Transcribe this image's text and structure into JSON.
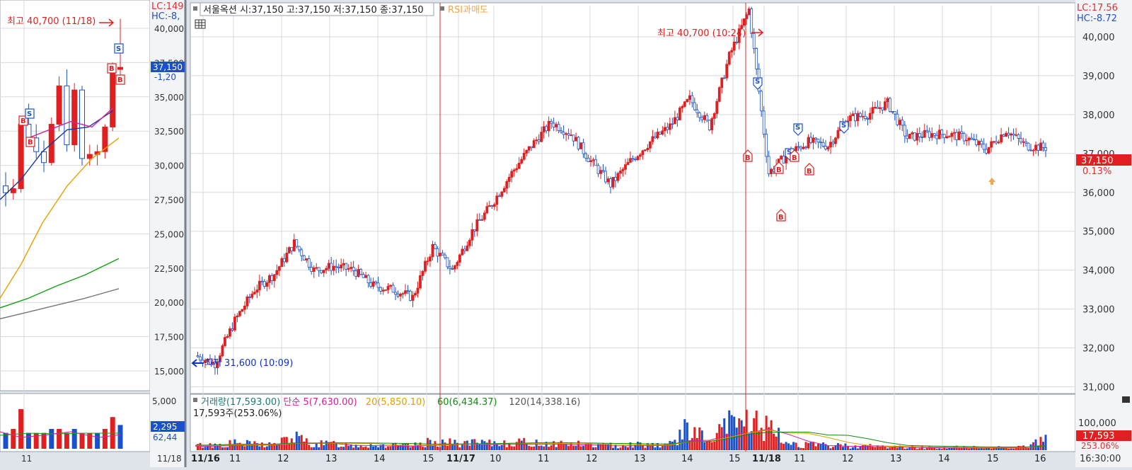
{
  "left_panel": {
    "lc_label": "LC:149",
    "hc_label": "HC:-8,",
    "high_annotation": "최고 40,700 (11/18)",
    "price_ticks": [
      "40,000",
      "37,500",
      "35,000",
      "32,500",
      "30,000",
      "27,500",
      "25,000",
      "22,500",
      "20,000",
      "17,500",
      "15,000"
    ],
    "current_price": "37,150",
    "change": "-1,20",
    "volume_tick": "5,000",
    "volume_current": "2,295",
    "volume_ratio": "62,44",
    "x_tick": "11",
    "bottom_label": "11/18"
  },
  "info_bar": {
    "title": "서울옥션 시:37,150 고:37,150 저:37,150 종:37,150",
    "rsi_label": "RSI과매도"
  },
  "main_panel": {
    "lc_label": "LC:17.56",
    "hc_label": "HC:-8.72",
    "high_annotation": "최고 40,700 (10:24)",
    "low_annotation": "최저 31,600 (10:09)",
    "price_ticks": [
      "40,000",
      "39,000",
      "38,000",
      "37,000",
      "36,000",
      "35,000",
      "34,000",
      "33,000",
      "32,000",
      "31,000"
    ],
    "current_price": "37,150",
    "current_pct": "0.13%",
    "volume": {
      "legend": [
        {
          "text": "거래량(17,593.00)",
          "color": "#1a7a7a"
        },
        {
          "text": "단순 5(7,630.00)",
          "color": "#d020a0"
        },
        {
          "text": "20(5,850.10)",
          "color": "#e0a000"
        },
        {
          "text": "60(6,434.37)",
          "color": "#108a10"
        },
        {
          "text": "120(14,338.16)",
          "color": "#555555"
        }
      ],
      "sub_label": "17,593주(253.06%)",
      "tick": "100,000",
      "current": "17,593",
      "current_pct": "253.06%"
    },
    "x_labels": [
      {
        "text": "11/16",
        "bold": true
      },
      {
        "text": "11",
        "bold": false
      },
      {
        "text": "12",
        "bold": false
      },
      {
        "text": "13",
        "bold": false
      },
      {
        "text": "14",
        "bold": false
      },
      {
        "text": "15",
        "bold": false
      },
      {
        "text": "11/17",
        "bold": true
      },
      {
        "text": "10",
        "bold": false
      },
      {
        "text": "11",
        "bold": false
      },
      {
        "text": "12",
        "bold": false
      },
      {
        "text": "13",
        "bold": false
      },
      {
        "text": "14",
        "bold": false
      },
      {
        "text": "15",
        "bold": false
      },
      {
        "text": "11/18",
        "bold": true
      },
      {
        "text": "11",
        "bold": false
      },
      {
        "text": "12",
        "bold": false
      },
      {
        "text": "13",
        "bold": false
      },
      {
        "text": "14",
        "bold": false
      },
      {
        "text": "15",
        "bold": false
      },
      {
        "text": "16",
        "bold": false
      }
    ],
    "time_label": "16:30:00"
  },
  "chart_data": {
    "type": "line",
    "title": "",
    "x": [
      "11/16 09:00",
      "11/16 10:09",
      "11/16 11:00",
      "11/16 11:30",
      "11/16 12:00",
      "11/16 12:20",
      "11/16 13:00",
      "11/16 13:30",
      "11/16 14:00",
      "11/16 14:30",
      "11/16 15:00",
      "11/16 15:30",
      "11/17 09:00",
      "11/17 09:30",
      "11/17 10:00",
      "11/17 10:30",
      "11/17 11:00",
      "11/17 11:30",
      "11/17 12:00",
      "11/17 12:30",
      "11/17 13:00",
      "11/17 13:20",
      "11/17 14:00",
      "11/17 14:30",
      "11/17 15:00",
      "11/17 15:20",
      "11/18 09:00",
      "11/18 09:30",
      "11/18 10:24",
      "11/18 10:45",
      "11/18 11:00",
      "11/18 11:20",
      "11/18 11:40",
      "11/18 12:00",
      "11/18 12:30",
      "11/18 12:50",
      "11/18 13:00",
      "11/18 13:30",
      "11/18 14:00",
      "11/18 14:30",
      "11/18 15:00",
      "11/18 15:30",
      "11/18 16:00",
      "11/18 16:10"
    ],
    "y": [
      31.8,
      31.6,
      32.7,
      33.5,
      33.9,
      34.7,
      34.0,
      34.1,
      34.0,
      33.6,
      33.5,
      33.3,
      34.6,
      34.0,
      35.0,
      35.7,
      36.5,
      37.2,
      37.8,
      37.5,
      36.8,
      36.2,
      36.8,
      37.3,
      37.7,
      38.4,
      37.7,
      39.5,
      40.7,
      36.5,
      37.0,
      37.3,
      37.2,
      37.9,
      38.0,
      38.3,
      37.4,
      37.5,
      37.5,
      37.4,
      37.1,
      37.6,
      37.2,
      37.15
    ],
    "y_unit": "thousand KRW",
    "ylim": [
      30.9,
      40.8
    ],
    "volume": [
      8000,
      9000,
      12000,
      10000,
      10000,
      22000,
      10000,
      11000,
      9000,
      9000,
      8000,
      7000,
      15000,
      12000,
      12000,
      11000,
      14000,
      12000,
      12000,
      11000,
      9000,
      8000,
      10000,
      10000,
      10000,
      40000,
      12000,
      45000,
      52000,
      35000,
      12000,
      9000,
      8000,
      8000,
      7000,
      6000,
      5000,
      5000,
      5000,
      5000,
      4000,
      6000,
      6000,
      17593
    ]
  }
}
